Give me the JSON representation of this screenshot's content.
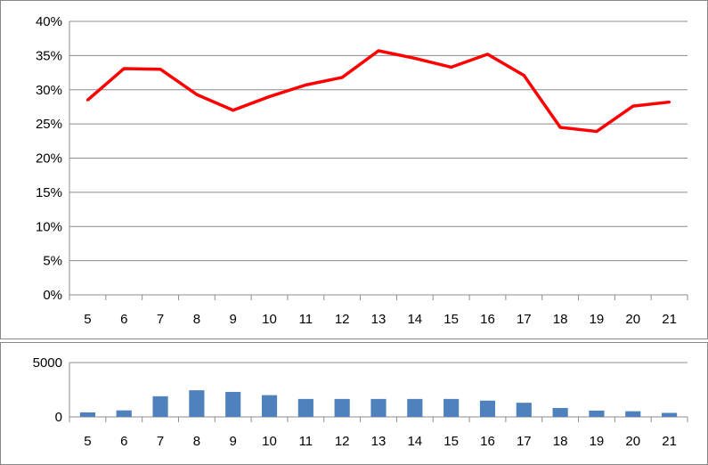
{
  "chart_data": [
    {
      "type": "line",
      "categories": [
        "5",
        "6",
        "7",
        "8",
        "9",
        "10",
        "11",
        "12",
        "13",
        "14",
        "15",
        "16",
        "17",
        "18",
        "19",
        "20",
        "21"
      ],
      "series": [
        {
          "values": [
            0.285,
            0.331,
            0.33,
            0.293,
            0.27,
            0.29,
            0.307,
            0.318,
            0.357,
            0.346,
            0.333,
            0.352,
            0.321,
            0.245,
            0.239,
            0.276,
            0.282
          ],
          "color": "#ff0000"
        }
      ],
      "ylim": [
        0,
        0.4
      ],
      "yticks": [
        {
          "value": 0,
          "label": "0%"
        },
        {
          "value": 0.05,
          "label": "5%"
        },
        {
          "value": 0.1,
          "label": "10%"
        },
        {
          "value": 0.15,
          "label": "15%"
        },
        {
          "value": 0.2,
          "label": "20%"
        },
        {
          "value": 0.25,
          "label": "25%"
        },
        {
          "value": 0.3,
          "label": "30%"
        },
        {
          "value": 0.35,
          "label": "35%"
        },
        {
          "value": 0.4,
          "label": "40%"
        }
      ],
      "grid": true,
      "legend": "none"
    },
    {
      "type": "bar",
      "categories": [
        "5",
        "6",
        "7",
        "8",
        "9",
        "10",
        "11",
        "12",
        "13",
        "14",
        "15",
        "16",
        "17",
        "18",
        "19",
        "20",
        "21"
      ],
      "series": [
        {
          "values": [
            420,
            600,
            1900,
            2450,
            2300,
            2000,
            1650,
            1650,
            1650,
            1650,
            1650,
            1500,
            1300,
            820,
            580,
            520,
            370
          ],
          "color": "#4f81bd"
        }
      ],
      "ylim": [
        0,
        5000
      ],
      "yticks": [
        {
          "value": 0,
          "label": "0"
        },
        {
          "value": 5000,
          "label": "5000"
        }
      ],
      "grid": true,
      "legend": "none"
    }
  ]
}
